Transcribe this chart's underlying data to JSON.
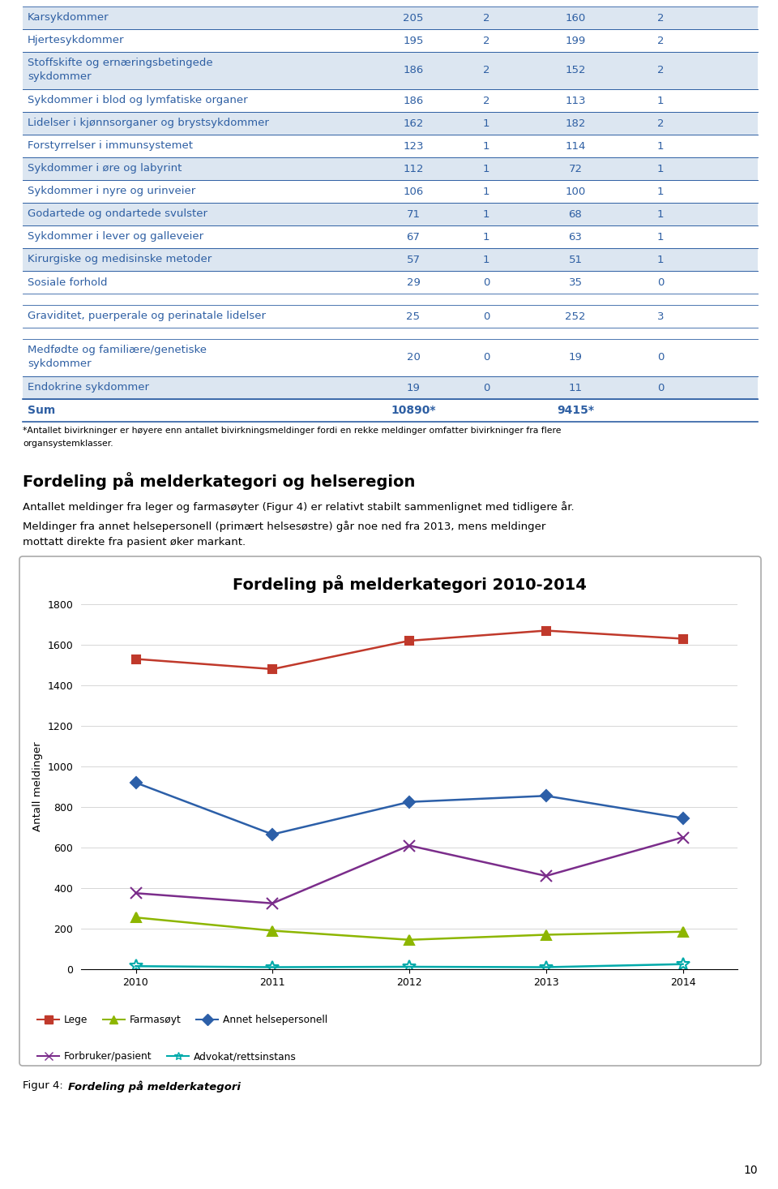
{
  "table_rows": [
    {
      "label": "Karsykdommer",
      "v1": "205",
      "v2": "2",
      "v3": "160",
      "v4": "2",
      "shaded": true,
      "tall": false,
      "gap_before": false
    },
    {
      "label": "Hjertesykdommer",
      "v1": "195",
      "v2": "2",
      "v3": "199",
      "v4": "2",
      "shaded": false,
      "tall": false,
      "gap_before": false
    },
    {
      "label": "Stoffskifte og ernæringsbetingede\nsykdommer",
      "v1": "186",
      "v2": "2",
      "v3": "152",
      "v4": "2",
      "shaded": true,
      "tall": true,
      "gap_before": false
    },
    {
      "label": "Sykdommer i blod og lymfatiske organer",
      "v1": "186",
      "v2": "2",
      "v3": "113",
      "v4": "1",
      "shaded": false,
      "tall": false,
      "gap_before": false
    },
    {
      "label": "Lidelser i kjønnsorganer og brystsykdommer",
      "v1": "162",
      "v2": "1",
      "v3": "182",
      "v4": "2",
      "shaded": true,
      "tall": false,
      "gap_before": false
    },
    {
      "label": "Forstyrrelser i immunsystemet",
      "v1": "123",
      "v2": "1",
      "v3": "114",
      "v4": "1",
      "shaded": false,
      "tall": false,
      "gap_before": false
    },
    {
      "label": "Sykdommer i øre og labyrint",
      "v1": "112",
      "v2": "1",
      "v3": "72",
      "v4": "1",
      "shaded": true,
      "tall": false,
      "gap_before": false
    },
    {
      "label": "Sykdommer i nyre og urinveier",
      "v1": "106",
      "v2": "1",
      "v3": "100",
      "v4": "1",
      "shaded": false,
      "tall": false,
      "gap_before": false
    },
    {
      "label": "Godartede og ondartede svulster",
      "v1": "71",
      "v2": "1",
      "v3": "68",
      "v4": "1",
      "shaded": true,
      "tall": false,
      "gap_before": false
    },
    {
      "label": "Sykdommer i lever og galleveier",
      "v1": "67",
      "v2": "1",
      "v3": "63",
      "v4": "1",
      "shaded": false,
      "tall": false,
      "gap_before": false
    },
    {
      "label": "Kirurgiske og medisinske metoder",
      "v1": "57",
      "v2": "1",
      "v3": "51",
      "v4": "1",
      "shaded": true,
      "tall": false,
      "gap_before": false
    },
    {
      "label": "Sosiale forhold",
      "v1": "29",
      "v2": "0",
      "v3": "35",
      "v4": "0",
      "shaded": false,
      "tall": false,
      "gap_before": false
    },
    {
      "label": "Graviditet, puerperale og perinatale lidelser",
      "v1": "25",
      "v2": "0",
      "v3": "252",
      "v4": "3",
      "shaded": false,
      "tall": false,
      "gap_before": true
    },
    {
      "label": "Medfødte og familiære/genetiske\nsykdommer",
      "v1": "20",
      "v2": "0",
      "v3": "19",
      "v4": "0",
      "shaded": false,
      "tall": true,
      "gap_before": true
    },
    {
      "label": "Endokrine sykdommer",
      "v1": "19",
      "v2": "0",
      "v3": "11",
      "v4": "0",
      "shaded": true,
      "tall": false,
      "gap_before": false
    },
    {
      "label": "Sum",
      "v1": "10890*",
      "v2": "",
      "v3": "9415*",
      "v4": "",
      "shaded": false,
      "tall": false,
      "is_sum": true,
      "gap_before": false
    }
  ],
  "footnote_line1": "*Antallet bivirkninger er høyere enn antallet bivirkningsmeldinger fordi en rekke meldinger omfatter bivirkninger fra flere",
  "footnote_line2": "organsystemklasser.",
  "section_title": "Fordeling på melderkategori og helseregion",
  "section_text1": "Antallet meldinger fra leger og farmasøyter (Figur 4) er relativt stabilt sammenlignet med tidligere år.",
  "section_text2_line1": "Meldinger fra annet helsepersonell (primært helsesøstre) går noe ned fra 2013, mens meldinger",
  "section_text2_line2": "mottatt direkte fra pasient øker markant.",
  "chart_title": "Fordeling på melderkategori 2010-2014",
  "chart_ylabel": "Antall meldinger",
  "chart_years": [
    2010,
    2011,
    2012,
    2013,
    2014
  ],
  "series_names": [
    "Lege",
    "Farmasøyt",
    "Annet helsepersonell",
    "Forbruker/pasient",
    "Advokat/rettsinstans"
  ],
  "series_values": [
    [
      1530,
      1480,
      1620,
      1670,
      1630
    ],
    [
      255,
      190,
      145,
      170,
      185
    ],
    [
      920,
      665,
      825,
      855,
      745
    ],
    [
      375,
      325,
      610,
      460,
      650
    ],
    [
      15,
      10,
      12,
      10,
      25
    ]
  ],
  "series_colors": [
    "#c0392b",
    "#8db600",
    "#2c5fa8",
    "#7b2d8b",
    "#00aaaa"
  ],
  "series_markers": [
    "s",
    "^",
    "D",
    "x",
    "*"
  ],
  "chart_ylim": [
    0,
    1800
  ],
  "chart_yticks": [
    0,
    200,
    400,
    600,
    800,
    1000,
    1200,
    1400,
    1600,
    1800
  ],
  "figure_caption_normal": "Figur 4: ",
  "figure_caption_bold_italic": "Fordeling på melderkategori",
  "page_number": "10",
  "shaded_color": "#dce6f1",
  "white_color": "#ffffff",
  "text_color": "#2e5fa3",
  "border_color": "#2e5fa3"
}
